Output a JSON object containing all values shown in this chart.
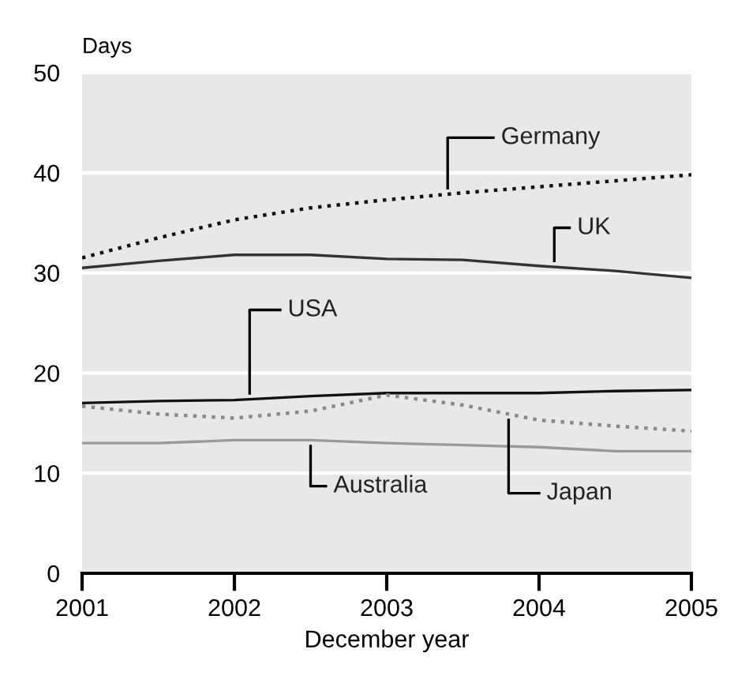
{
  "chart_data": {
    "type": "line",
    "ylabel": "Days",
    "xlabel": "December year",
    "x": [
      2001,
      2001.5,
      2002,
      2002.5,
      2003,
      2003.5,
      2004,
      2004.5,
      2005
    ],
    "series": [
      {
        "name": "Germany",
        "color": "#111111",
        "line_style": "dotted",
        "values": [
          31.5,
          33.5,
          35.3,
          36.5,
          37.3,
          38.0,
          38.6,
          39.2,
          39.8
        ]
      },
      {
        "name": "UK",
        "color": "#333333",
        "line_style": "solid",
        "values": [
          30.5,
          31.2,
          31.8,
          31.8,
          31.4,
          31.3,
          30.7,
          30.2,
          29.5
        ]
      },
      {
        "name": "USA",
        "color": "#111111",
        "line_style": "solid",
        "values": [
          17.0,
          17.2,
          17.3,
          17.7,
          18.0,
          18.0,
          18.0,
          18.2,
          18.3
        ]
      },
      {
        "name": "Australia",
        "color": "#999999",
        "line_style": "solid",
        "values": [
          13.0,
          13.0,
          13.3,
          13.3,
          13.0,
          12.8,
          12.6,
          12.2,
          12.2
        ]
      },
      {
        "name": "Japan",
        "color": "#888888",
        "line_style": "dotted",
        "values": [
          16.7,
          15.9,
          15.5,
          16.2,
          17.8,
          16.8,
          15.3,
          14.7,
          14.2
        ]
      }
    ],
    "xlim": [
      2001,
      2005
    ],
    "xticks": [
      2001,
      2002,
      2003,
      2004,
      2005
    ],
    "ylim": [
      0,
      50
    ],
    "yticks": [
      0,
      10,
      20,
      30,
      40,
      50
    ],
    "grid": "y",
    "marker": "none",
    "legend": false
  }
}
